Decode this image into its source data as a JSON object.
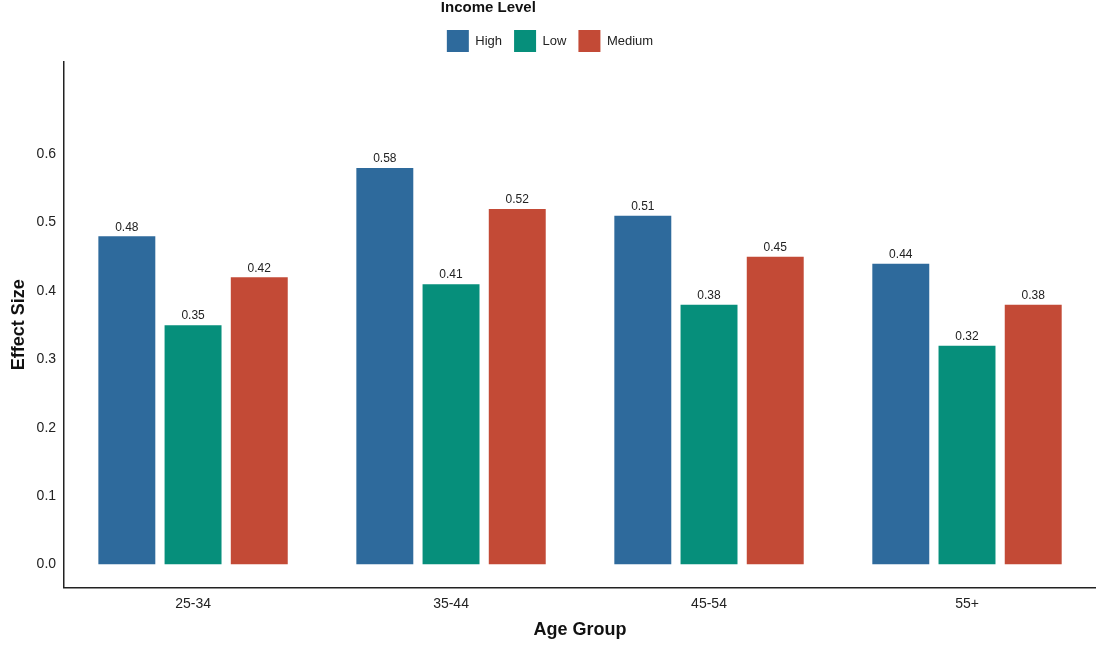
{
  "chart_data": {
    "type": "bar",
    "xlabel": "Age Group",
    "ylabel": "Effect Size",
    "legend_title": "Income Level",
    "categories": [
      "25-34",
      "35-44",
      "45-54",
      "55+"
    ],
    "series": [
      {
        "name": "High",
        "color": "#2e6a9c",
        "values": [
          0.48,
          0.58,
          0.51,
          0.44
        ]
      },
      {
        "name": "Low",
        "color": "#068f7b",
        "values": [
          0.35,
          0.41,
          0.38,
          0.32
        ]
      },
      {
        "name": "Medium",
        "color": "#c34a36",
        "values": [
          0.42,
          0.52,
          0.45,
          0.38
        ]
      }
    ],
    "ylim": [
      -0.034,
      0.735
    ],
    "yticks": [
      {
        "value": 0,
        "label": "0.0"
      },
      0.1,
      0.2,
      0.3,
      0.4,
      0.5,
      0.6
    ],
    "grid": false,
    "legend": "top",
    "data_labels": true
  }
}
